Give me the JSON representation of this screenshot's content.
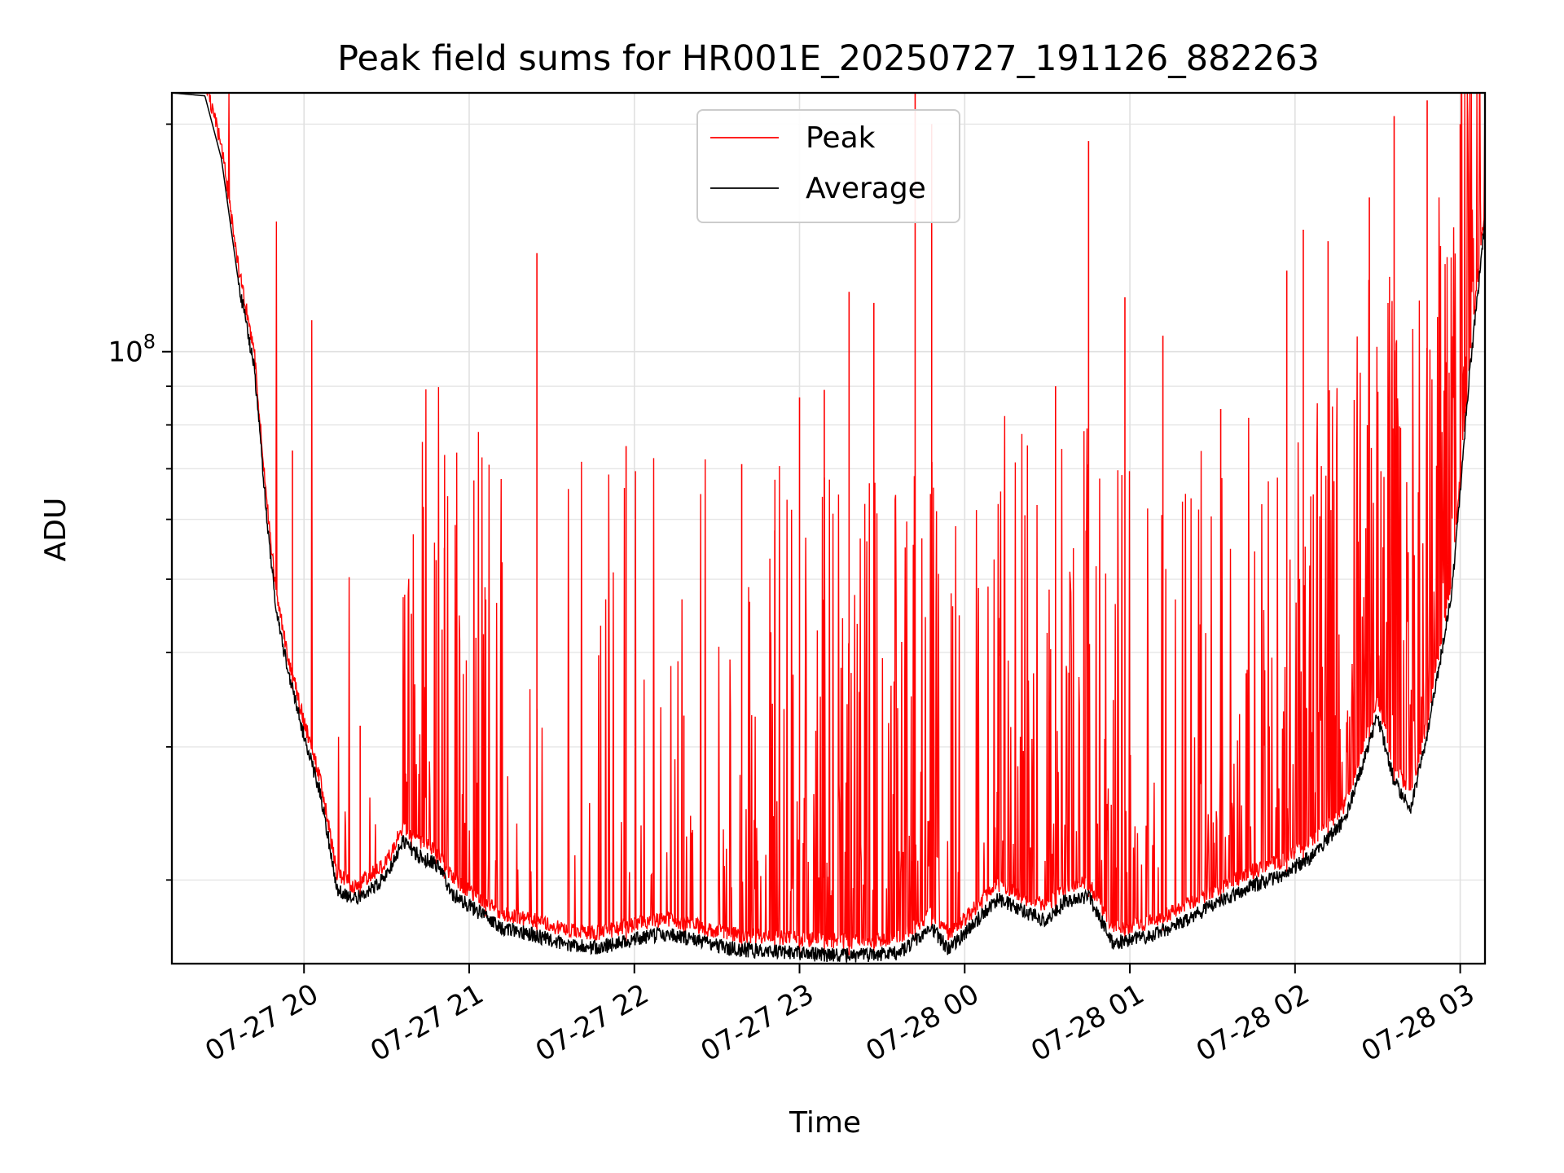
{
  "chart_data": {
    "type": "line",
    "title": "Peak field sums for HR001E_20250727_191126_882263",
    "xlabel": "Time",
    "ylabel": "ADU",
    "yscale": "log",
    "grid": true,
    "legend_position": "upper-center",
    "x_tick_labels": [
      "07-27 20",
      "07-27 21",
      "07-27 22",
      "07-27 23",
      "07-28 00",
      "07-28 01",
      "07-28 02",
      "07-28 03"
    ],
    "y_tick_label": {
      "base": "10",
      "exponent": "8"
    },
    "x_range_hours": [
      19.2,
      27.15
    ],
    "ylim": [
      15500000,
      220000000
    ],
    "series": [
      {
        "name": "Peak",
        "color": "#ff0000",
        "style": "thin line with frequent upward spikes above the average",
        "spikes": [
          [
            19.93,
            74000000
          ],
          [
            20.34,
            32000000
          ],
          [
            20.65,
            45000000
          ],
          [
            20.8,
            53000000
          ],
          [
            20.85,
            55000000
          ],
          [
            21.1,
            47000000
          ],
          [
            21.41,
            135000000
          ],
          [
            21.95,
            75000000
          ],
          [
            22.3,
            33000000
          ],
          [
            22.65,
            71000000
          ],
          [
            22.85,
            58000000
          ],
          [
            23.0,
            87000000
          ],
          [
            23.15,
            89000000
          ],
          [
            23.3,
            120000000
          ],
          [
            23.45,
            116000000
          ],
          [
            23.7,
            220000000
          ],
          [
            23.8,
            200000000
          ],
          [
            24.55,
            90000000
          ],
          [
            24.75,
            190000000
          ],
          [
            24.97,
            118000000
          ],
          [
            25.2,
            105000000
          ],
          [
            25.55,
            84000000
          ],
          [
            25.95,
            128000000
          ],
          [
            26.05,
            145000000
          ],
          [
            26.2,
            140000000
          ],
          [
            26.45,
            160000000
          ],
          [
            26.6,
            205000000
          ],
          [
            26.8,
            215000000
          ],
          [
            27.0,
            200000000
          ]
        ]
      },
      {
        "name": "Average",
        "color": "#000000",
        "style": "thin line, baseline level",
        "points": [
          [
            19.2,
            220000000
          ],
          [
            19.4,
            218000000
          ],
          [
            19.5,
            180000000
          ],
          [
            19.6,
            125000000
          ],
          [
            19.7,
            95000000
          ],
          [
            19.77,
            62000000
          ],
          [
            19.83,
            46000000
          ],
          [
            19.9,
            38000000
          ],
          [
            20.0,
            31000000
          ],
          [
            20.1,
            26000000
          ],
          [
            20.2,
            19500000
          ],
          [
            20.3,
            18800000
          ],
          [
            20.4,
            19400000
          ],
          [
            20.5,
            20200000
          ],
          [
            20.6,
            22500000
          ],
          [
            20.7,
            21500000
          ],
          [
            20.8,
            21000000
          ],
          [
            20.9,
            19200000
          ],
          [
            21.0,
            18500000
          ],
          [
            21.2,
            17300000
          ],
          [
            21.4,
            16900000
          ],
          [
            21.6,
            16400000
          ],
          [
            21.8,
            16300000
          ],
          [
            22.0,
            16700000
          ],
          [
            22.2,
            17000000
          ],
          [
            22.4,
            16600000
          ],
          [
            22.6,
            16200000
          ],
          [
            22.8,
            16100000
          ],
          [
            23.0,
            16000000
          ],
          [
            23.2,
            15900000
          ],
          [
            23.4,
            15900000
          ],
          [
            23.6,
            16000000
          ],
          [
            23.8,
            17300000
          ],
          [
            23.9,
            16200000
          ],
          [
            24.0,
            17000000
          ],
          [
            24.2,
            18900000
          ],
          [
            24.35,
            18200000
          ],
          [
            24.5,
            17600000
          ],
          [
            24.6,
            18700000
          ],
          [
            24.75,
            19000000
          ],
          [
            24.9,
            16500000
          ],
          [
            25.1,
            16800000
          ],
          [
            25.3,
            17500000
          ],
          [
            25.5,
            18500000
          ],
          [
            25.7,
            19500000
          ],
          [
            25.9,
            20200000
          ],
          [
            26.1,
            21500000
          ],
          [
            26.3,
            24000000
          ],
          [
            26.5,
            33000000
          ],
          [
            26.6,
            27000000
          ],
          [
            26.7,
            25000000
          ],
          [
            26.8,
            31000000
          ],
          [
            26.95,
            48000000
          ],
          [
            27.05,
            90000000
          ],
          [
            27.15,
            150000000
          ]
        ]
      }
    ]
  }
}
